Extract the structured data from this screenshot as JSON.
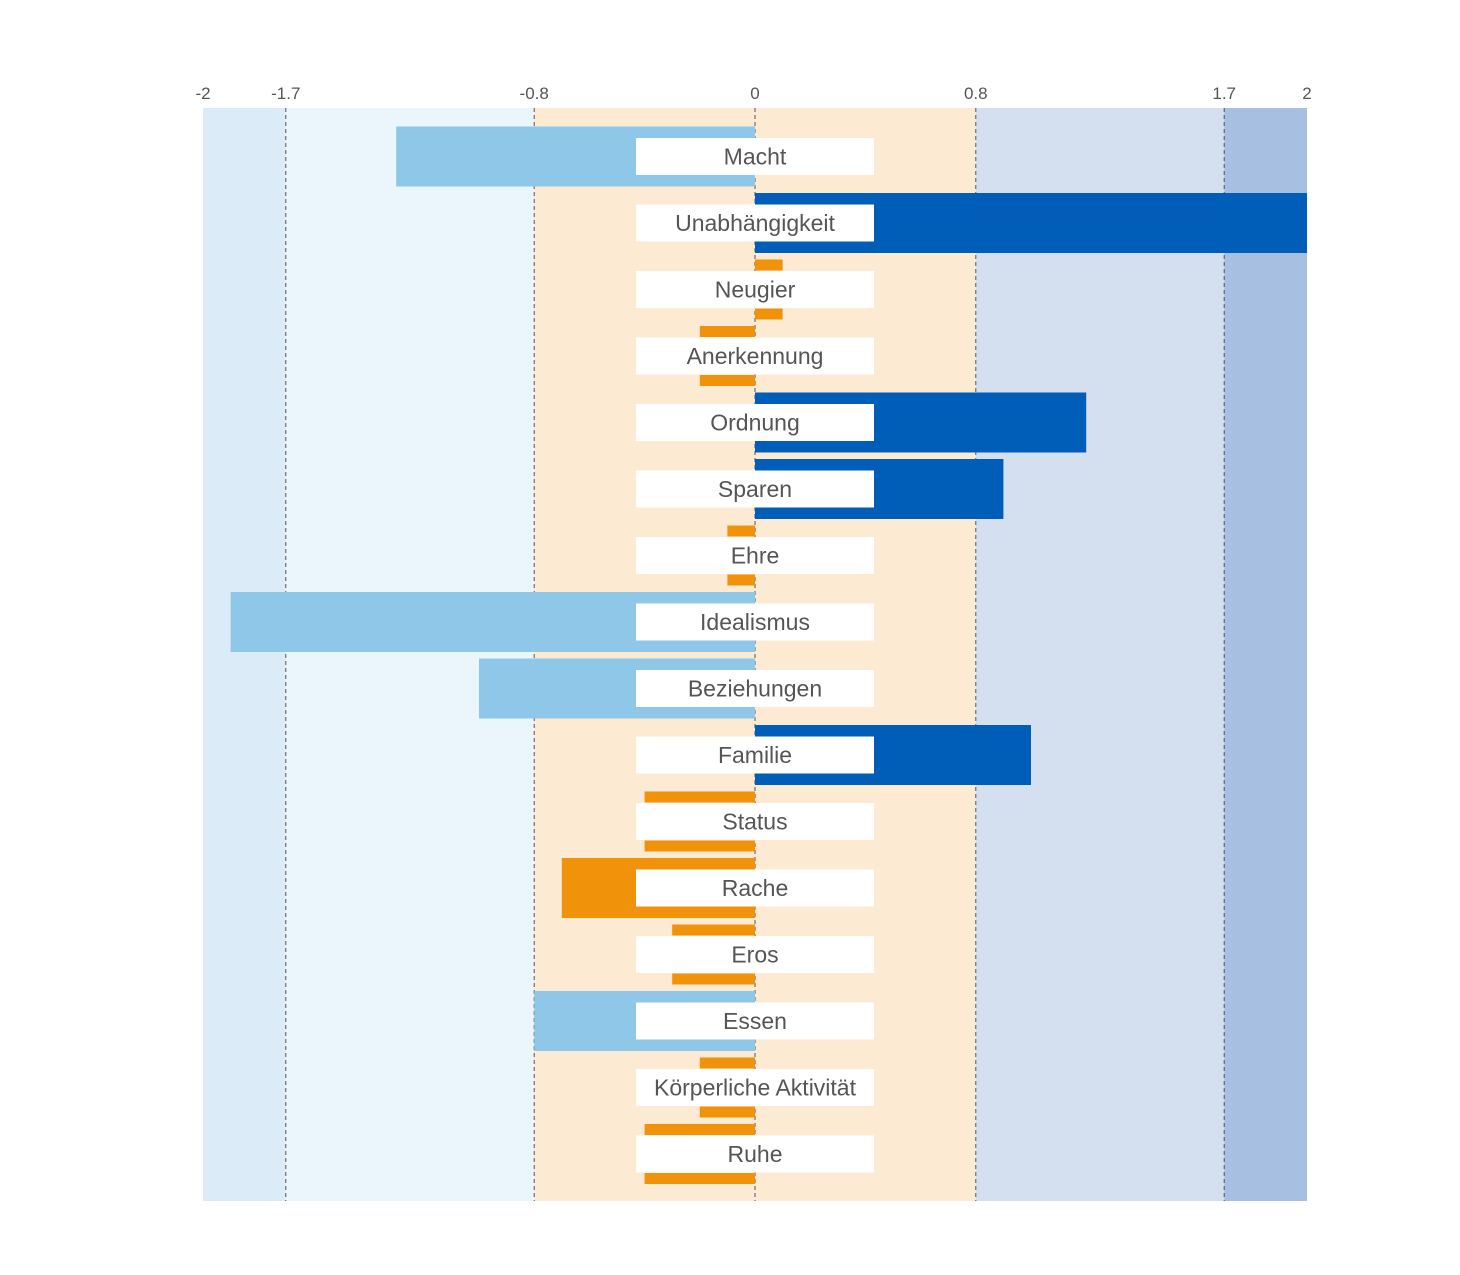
{
  "chart_data": {
    "type": "bar",
    "orientation": "horizontal",
    "title": "",
    "xlabel": "",
    "ylabel": "",
    "xlim": [
      -2,
      2
    ],
    "ticks": [
      "-2",
      "-1.7",
      "-0.8",
      "0",
      "0.8",
      "1.7",
      "2"
    ],
    "tick_values": [
      -2,
      -1.7,
      -0.8,
      0,
      0.8,
      1.7,
      2
    ],
    "bands": [
      {
        "from": -2,
        "to": -1.7,
        "color": "#dbecf8"
      },
      {
        "from": -1.7,
        "to": -0.8,
        "color": "#eaf5fc"
      },
      {
        "from": -0.8,
        "to": 0.8,
        "color": "#fcead3"
      },
      {
        "from": 0.8,
        "to": 1.7,
        "color": "#d4dfef"
      },
      {
        "from": 1.7,
        "to": 2,
        "color": "#a7bfe0"
      }
    ],
    "categories": [
      "Macht",
      "Unabhängigkeit",
      "Neugier",
      "Anerkennung",
      "Ordnung",
      "Sparen",
      "Ehre",
      "Idealismus",
      "Beziehungen",
      "Familie",
      "Status",
      "Rache",
      "Eros",
      "Essen",
      "Körperliche Aktivität",
      "Ruhe"
    ],
    "values": [
      -1.3,
      2.0,
      0.1,
      -0.2,
      1.2,
      0.9,
      -0.1,
      -1.9,
      -1.0,
      1.0,
      -0.4,
      -0.7,
      -0.3,
      -0.8,
      -0.2,
      -0.4
    ],
    "colors": {
      "strong_positive": "#005eb8",
      "strong_negative": "#8ec7e8",
      "neutral": "#f0920a",
      "gridline": "#555555",
      "label_box": "#ffffff",
      "text": "#555555"
    },
    "grid": true,
    "legend": "none"
  }
}
